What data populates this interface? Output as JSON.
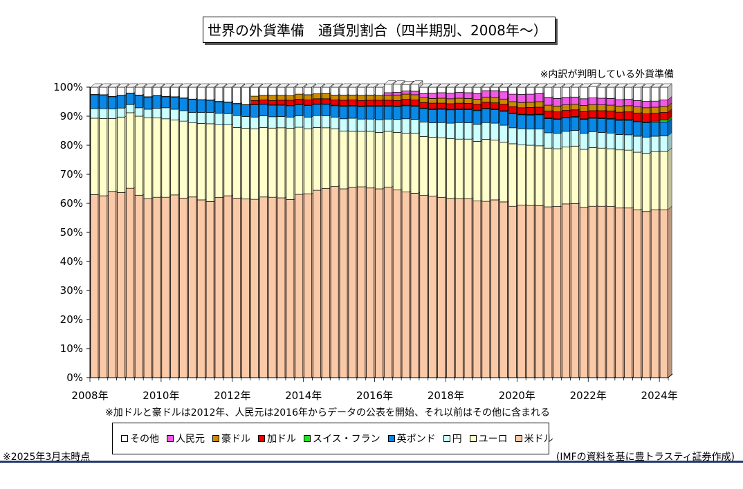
{
  "title": "世界の外貨準備　通貨別割合（四半期別、2008年～）",
  "notes": {
    "top_right": "※内訳が判明している外貨準備",
    "middle": "※加ドルと豪ドルは2012年、人民元は2016年からデータの公表を開始、それ以前はその他に含まれる",
    "as_of": "※2025年3月末時点",
    "source": "(IMFの資料を基に豊トラスティ証券作成)"
  },
  "colors": {
    "米ドル": "#fac9a8",
    "ユーロ": "#ffffcc",
    "円": "#ccffff",
    "英ポンド": "#0a88e6",
    "スイス・フラン": "#1ee61e",
    "加ドル": "#ee0000",
    "豪ドル": "#cc8a00",
    "人民元": "#f05ae6",
    "その他": "#ffffff"
  },
  "chart_data": {
    "type": "bar",
    "stacked": true,
    "quarters_per_year": 4,
    "start": "2008Q1",
    "x_tick_labels": [
      "2008年",
      "2010年",
      "2012年",
      "2014年",
      "2016年",
      "2018年",
      "2020年",
      "2022年",
      "2024年"
    ],
    "y_tick_labels": [
      "0%",
      "10%",
      "20%",
      "30%",
      "40%",
      "50%",
      "60%",
      "70%",
      "80%",
      "90%",
      "100%"
    ],
    "ylim": [
      0,
      100
    ],
    "legend_order": [
      "その他",
      "人民元",
      "豪ドル",
      "加ドル",
      "スイス・フラン",
      "英ポンド",
      "円",
      "ユーロ",
      "米ドル"
    ],
    "stack_order": [
      "米ドル",
      "ユーロ",
      "円",
      "英ポンド",
      "スイス・フラン",
      "加ドル",
      "豪ドル",
      "人民元",
      "その他"
    ],
    "series": [
      {
        "name": "米ドル",
        "values": [
          63.0,
          62.6,
          64.1,
          63.7,
          65.2,
          62.8,
          61.6,
          62.1,
          62.1,
          62.9,
          61.8,
          62.2,
          61.2,
          60.6,
          62.0,
          62.6,
          61.8,
          61.5,
          61.4,
          62.2,
          62.1,
          61.9,
          61.3,
          63.1,
          63.3,
          64.5,
          65.1,
          65.8,
          65.0,
          65.5,
          65.7,
          65.3,
          65.0,
          65.6,
          64.6,
          63.9,
          63.5,
          62.7,
          62.5,
          62.0,
          61.7,
          61.6,
          61.6,
          60.8,
          60.7,
          61.2,
          60.5,
          59.0,
          59.4,
          59.3,
          59.2,
          58.8,
          58.9,
          59.8,
          59.9,
          58.6,
          59.0,
          59.0,
          58.9,
          58.4,
          58.4,
          57.8,
          57.2,
          57.8,
          57.8
        ]
      },
      {
        "name": "ユーロ",
        "values": [
          26.3,
          26.6,
          25.1,
          26.0,
          26.0,
          27.2,
          27.9,
          27.3,
          27.0,
          25.8,
          26.5,
          25.5,
          26.3,
          26.8,
          25.0,
          24.4,
          24.3,
          24.3,
          24.3,
          23.9,
          23.8,
          24.1,
          24.5,
          23.1,
          22.4,
          21.6,
          20.9,
          19.9,
          19.9,
          19.3,
          19.1,
          19.5,
          19.4,
          19.2,
          19.8,
          20.3,
          20.6,
          20.3,
          20.2,
          20.6,
          20.6,
          20.5,
          20.5,
          20.5,
          21.3,
          20.6,
          20.6,
          21.5,
          20.7,
          20.7,
          20.6,
          20.2,
          19.9,
          19.6,
          19.8,
          20.0,
          20.2,
          20.0,
          19.9,
          20.0,
          19.9,
          19.8,
          20.1,
          20.0,
          20.1
        ]
      },
      {
        "name": "円",
        "values": [
          3.3,
          3.4,
          3.3,
          3.1,
          2.8,
          2.9,
          2.9,
          3.3,
          3.8,
          3.7,
          3.6,
          3.6,
          3.8,
          3.9,
          4.0,
          3.9,
          4.1,
          4.1,
          4.0,
          4.0,
          3.9,
          3.9,
          3.9,
          3.9,
          4.0,
          4.1,
          4.1,
          4.0,
          4.2,
          4.5,
          4.2,
          4.2,
          4.4,
          4.2,
          4.5,
          4.9,
          4.8,
          5.0,
          5.0,
          5.2,
          5.3,
          5.7,
          5.6,
          5.9,
          5.8,
          5.8,
          5.8,
          5.5,
          5.6,
          5.6,
          5.8,
          5.3,
          5.3,
          5.4,
          5.4,
          5.5,
          5.5,
          5.4,
          5.4,
          5.3,
          5.3,
          5.5,
          5.5,
          5.3,
          5.3
        ]
      },
      {
        "name": "英ポンド",
        "values": [
          4.8,
          4.7,
          4.2,
          4.3,
          3.8,
          4.3,
          4.2,
          4.3,
          3.8,
          4.2,
          4.3,
          4.5,
          4.3,
          4.2,
          4.0,
          3.9,
          4.1,
          4.0,
          4.2,
          4.0,
          4.0,
          3.9,
          3.9,
          3.9,
          4.0,
          3.9,
          4.0,
          3.9,
          4.3,
          4.2,
          4.3,
          4.4,
          4.6,
          4.4,
          4.4,
          4.5,
          4.5,
          4.6,
          4.6,
          4.6,
          4.6,
          4.5,
          4.6,
          4.7,
          4.7,
          4.7,
          4.8,
          4.9,
          4.8,
          4.8,
          4.9,
          4.9,
          4.8,
          4.6,
          4.6,
          4.8,
          4.6,
          4.8,
          4.8,
          4.9,
          5.0,
          5.0,
          5.0,
          4.8,
          4.8
        ]
      },
      {
        "name": "スイス・フラン",
        "values": [
          0.1,
          0.1,
          0.1,
          0.1,
          0.1,
          0.1,
          0.1,
          0.1,
          0.1,
          0.1,
          0.1,
          0.1,
          0.1,
          0.1,
          0.1,
          0.1,
          0.1,
          0.1,
          0.1,
          0.1,
          0.1,
          0.1,
          0.1,
          0.1,
          0.1,
          0.1,
          0.1,
          0.2,
          0.2,
          0.2,
          0.2,
          0.2,
          0.2,
          0.2,
          0.2,
          0.2,
          0.2,
          0.2,
          0.2,
          0.2,
          0.2,
          0.2,
          0.2,
          0.2,
          0.2,
          0.2,
          0.2,
          0.2,
          0.2,
          0.2,
          0.2,
          0.2,
          0.2,
          0.2,
          0.2,
          0.2,
          0.2,
          0.2,
          0.2,
          0.2,
          0.2,
          0.2,
          0.2,
          0.4,
          0.7
        ]
      },
      {
        "name": "加ドル",
        "values": [
          0,
          0,
          0,
          0,
          0,
          0,
          0,
          0,
          0,
          0,
          0,
          0,
          0,
          0,
          0,
          0,
          0,
          0,
          1.4,
          1.4,
          1.5,
          1.6,
          1.8,
          1.7,
          1.8,
          1.8,
          1.8,
          1.8,
          1.9,
          1.9,
          1.9,
          1.9,
          1.9,
          1.9,
          1.9,
          2.0,
          2.0,
          1.9,
          2.0,
          1.9,
          1.9,
          2.0,
          1.9,
          2.0,
          2.1,
          2.1,
          2.2,
          2.2,
          2.2,
          2.4,
          2.4,
          2.4,
          2.4,
          2.4,
          2.3,
          2.5,
          2.4,
          2.5,
          2.6,
          2.6,
          2.7,
          2.8,
          2.8,
          2.7,
          2.6
        ]
      },
      {
        "name": "豪ドル",
        "values": [
          0,
          0,
          0,
          0,
          0,
          0,
          0,
          0,
          0,
          0,
          0,
          0,
          0,
          0,
          0,
          0,
          0,
          0,
          1.5,
          1.6,
          1.8,
          1.7,
          1.6,
          1.8,
          1.8,
          1.7,
          1.8,
          1.7,
          1.8,
          1.7,
          1.8,
          1.8,
          1.7,
          1.7,
          1.8,
          1.8,
          1.8,
          1.7,
          1.6,
          1.7,
          1.7,
          1.7,
          1.7,
          1.7,
          1.8,
          1.9,
          1.8,
          1.7,
          1.8,
          1.8,
          1.9,
          2.0,
          2.0,
          1.9,
          1.9,
          2.1,
          2.1,
          2.0,
          2.0,
          2.1,
          2.1,
          2.1,
          2.1,
          2.1,
          2.1
        ]
      },
      {
        "name": "人民元",
        "values": [
          0,
          0,
          0,
          0,
          0,
          0,
          0,
          0,
          0,
          0,
          0,
          0,
          0,
          0,
          0,
          0,
          0,
          0,
          0,
          0,
          0,
          0,
          0,
          0,
          0,
          0,
          0,
          0,
          0,
          0,
          0,
          0,
          0,
          0.9,
          1.0,
          1.1,
          1.2,
          1.4,
          1.8,
          1.9,
          1.9,
          2.0,
          2.0,
          2.0,
          2.2,
          2.3,
          2.5,
          2.6,
          2.8,
          2.8,
          2.8,
          2.7,
          2.6,
          2.6,
          2.5,
          2.3,
          2.3,
          2.3,
          2.3,
          2.2,
          2.2,
          2.2,
          2.2,
          2.1,
          2.2
        ]
      },
      {
        "name": "その他",
        "values": [
          2.5,
          2.6,
          3.2,
          2.8,
          2.1,
          2.7,
          3.3,
          2.9,
          3.2,
          3.3,
          3.7,
          4.1,
          4.3,
          4.4,
          4.9,
          5.1,
          5.6,
          6.0,
          3.1,
          2.8,
          2.8,
          2.8,
          2.9,
          2.4,
          2.6,
          2.3,
          2.2,
          2.7,
          2.7,
          2.7,
          2.8,
          2.7,
          2.8,
          2.9,
          2.8,
          2.2,
          2.4,
          2.2,
          2.1,
          1.9,
          2.1,
          1.8,
          1.9,
          2.2,
          1.2,
          1.2,
          1.6,
          2.4,
          2.5,
          2.4,
          2.2,
          3.5,
          3.9,
          3.5,
          3.4,
          4.0,
          3.9,
          3.8,
          3.9,
          4.3,
          4.2,
          4.6,
          4.9,
          4.8,
          4.4
        ]
      }
    ]
  }
}
